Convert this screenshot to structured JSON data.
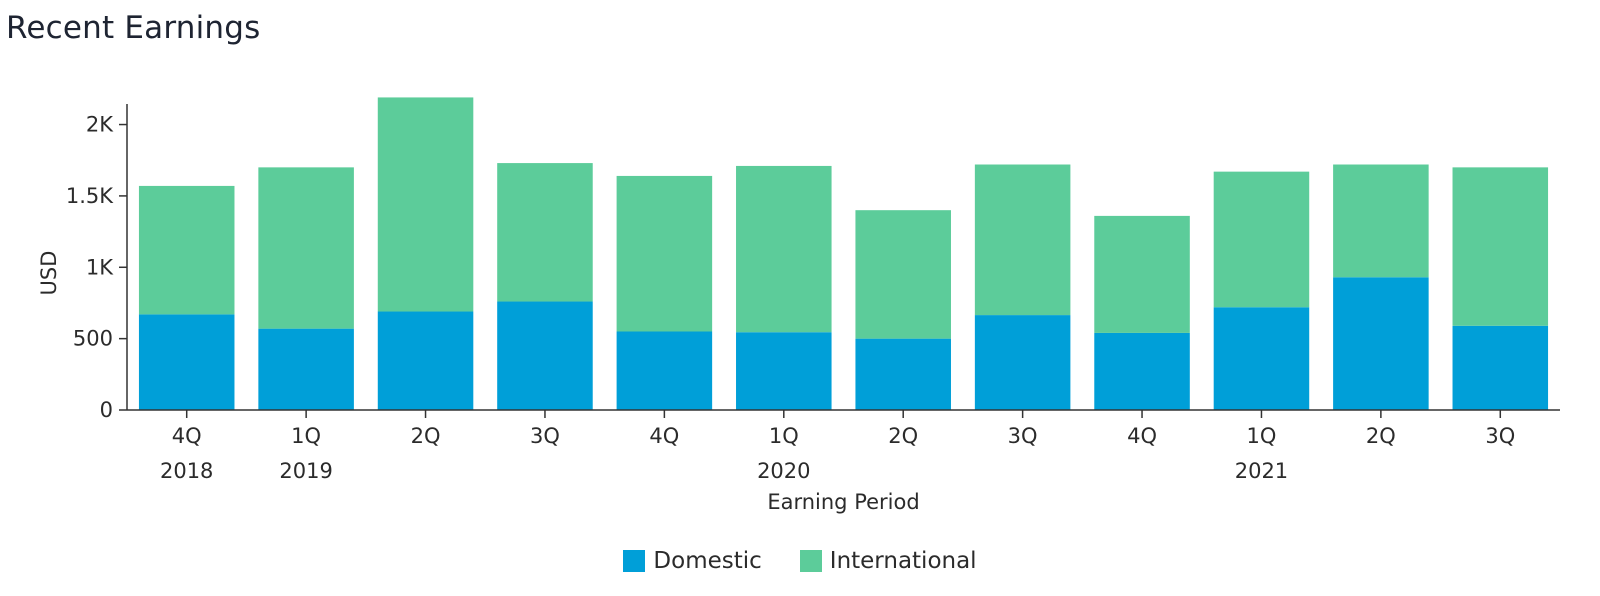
{
  "title": "Recent Earnings",
  "colors": {
    "domestic": "#009fd8",
    "international": "#5ccc9a",
    "axis": "#333333"
  },
  "legend": {
    "domestic_label": "Domestic",
    "international_label": "International"
  },
  "chart_data": {
    "type": "bar",
    "stacked": true,
    "title": "Recent Earnings",
    "xlabel": "Earning Period",
    "ylabel": "USD",
    "ylim": [
      0,
      2200
    ],
    "yticks": [
      0,
      500,
      1000,
      1500,
      2000
    ],
    "ytick_labels": [
      "0",
      "500",
      "1K",
      "1.5K",
      "2K"
    ],
    "categories": [
      "4Q",
      "1Q",
      "2Q",
      "3Q",
      "4Q",
      "1Q",
      "2Q",
      "3Q",
      "4Q",
      "1Q",
      "2Q",
      "3Q"
    ],
    "year_labels": [
      "2018",
      "2019",
      "",
      "",
      "",
      "2020",
      "",
      "",
      "",
      "2021",
      "",
      ""
    ],
    "series": [
      {
        "name": "Domestic",
        "values": [
          670,
          570,
          690,
          760,
          550,
          545,
          500,
          665,
          540,
          720,
          930,
          590
        ]
      },
      {
        "name": "International",
        "values": [
          900,
          1130,
          1500,
          970,
          1090,
          1165,
          900,
          1055,
          820,
          950,
          790,
          1110
        ]
      }
    ],
    "grid": false,
    "legend_position": "bottom"
  }
}
